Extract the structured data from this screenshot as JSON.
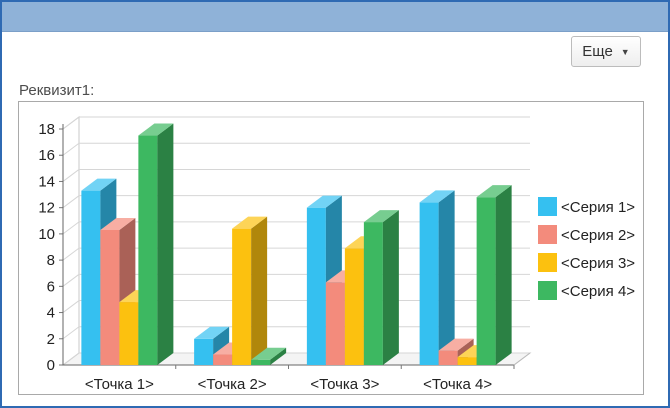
{
  "toolbar": {
    "more_label": "Еще"
  },
  "field": {
    "label": "Реквизит1:"
  },
  "colors": {
    "series": [
      "#35c0f0",
      "#f38b7c",
      "#fcc10f",
      "#3db861"
    ]
  },
  "chart_data": {
    "type": "bar",
    "categories": [
      "<Точка 1>",
      "<Точка 2>",
      "<Точка 3>",
      "<Точка 4>"
    ],
    "series": [
      {
        "name": "<Серия 1>",
        "values": [
          13.3,
          2.0,
          12.0,
          12.4
        ]
      },
      {
        "name": "<Серия 2>",
        "values": [
          10.3,
          0.8,
          6.3,
          1.1
        ]
      },
      {
        "name": "<Серия 3>",
        "values": [
          4.8,
          10.4,
          8.9,
          0.6
        ]
      },
      {
        "name": "<Серия 4>",
        "values": [
          17.5,
          0.4,
          10.9,
          12.8
        ]
      }
    ],
    "yticks": [
      "0",
      "2",
      "4",
      "6",
      "8",
      "10",
      "12",
      "14",
      "16",
      "18"
    ],
    "ylim": [
      0,
      18
    ],
    "grid": true,
    "legend": "right"
  }
}
